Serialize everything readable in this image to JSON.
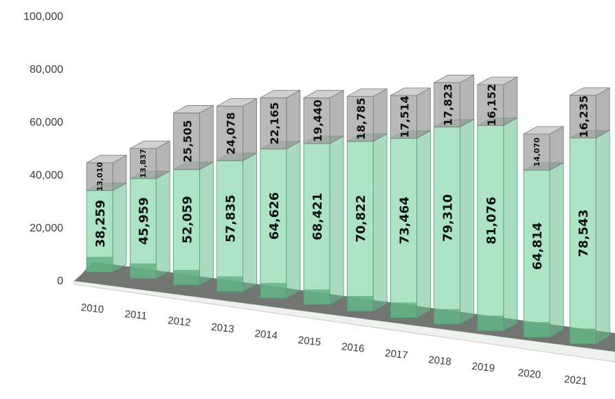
{
  "chart_data": {
    "type": "bar",
    "stacked": true,
    "three_d": true,
    "categories": [
      "2010",
      "2011",
      "2012",
      "2013",
      "2014",
      "2015",
      "2016",
      "2017",
      "2018",
      "2019",
      "2020",
      "2021"
    ],
    "series": [
      {
        "values": [
          38259,
          45959,
          52059,
          57835,
          64626,
          68421,
          70822,
          73464,
          79310,
          81076,
          64814,
          78543
        ],
        "labels": [
          "38,259",
          "45,959",
          "52,059",
          "57,835",
          "64,626",
          "68,421",
          "70,822",
          "73,464",
          "79,310",
          "81,076",
          "64,814",
          "78,543"
        ]
      },
      {
        "values": [
          13010,
          13837,
          25505,
          24078,
          22165,
          19440,
          18785,
          17514,
          17823,
          16152,
          14070,
          16235
        ],
        "labels": [
          "13,010",
          "13,837",
          "25,505",
          "24,078",
          "22,165",
          "19,440",
          "18,785",
          "17,514",
          "17,823",
          "16,152",
          "14,070",
          "16,235"
        ]
      }
    ],
    "ylim": [
      0,
      100000
    ],
    "yticks": [
      "0",
      "20,000",
      "40,000",
      "60,000",
      "80,000",
      "100,000"
    ],
    "grid": false,
    "legend": "none",
    "colors": {
      "lower": "#8fd9b0",
      "upper": "#b4b4b4",
      "floor": "#3f6e52"
    }
  }
}
